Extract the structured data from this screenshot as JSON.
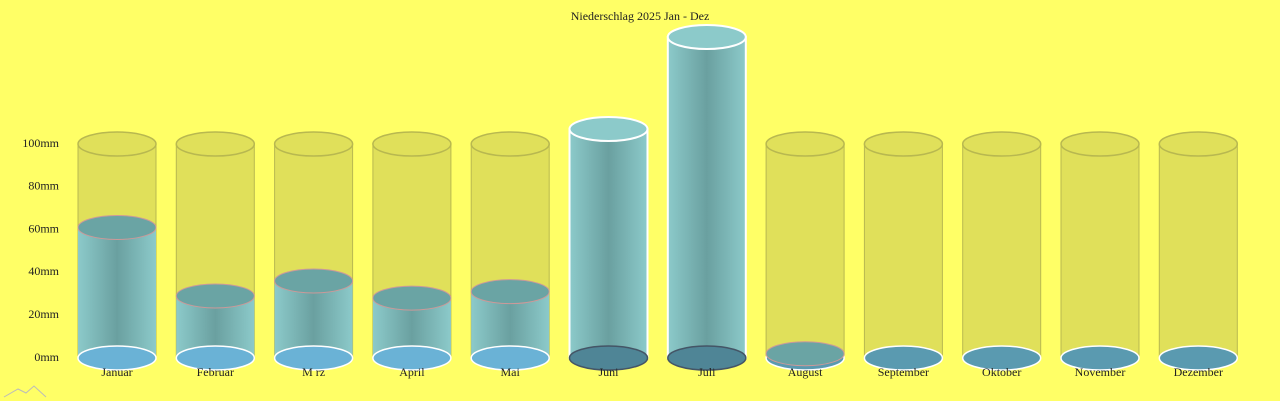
{
  "chart_data": {
    "type": "cylinder",
    "title": "Niederschlag 2025 Jan - Dez",
    "categories": [
      "Januar",
      "Februar",
      "M rz",
      "April",
      "Mai",
      "Juni",
      "Juli",
      "August",
      "September",
      "Oktober",
      "November",
      "Dezember"
    ],
    "values": [
      61,
      29,
      36,
      28,
      31,
      107,
      150,
      2,
      0,
      0,
      0,
      0
    ],
    "color": "#80c4c4",
    "ylim": [
      0,
      150
    ],
    "yticks": [
      {
        "value": 0,
        "label": "0mm"
      },
      {
        "value": 20,
        "label": "20mm"
      },
      {
        "value": 40,
        "label": "40mm"
      },
      {
        "value": 60,
        "label": "60mm"
      },
      {
        "value": 80,
        "label": "80mm"
      },
      {
        "value": 100,
        "label": "100mm"
      }
    ]
  }
}
